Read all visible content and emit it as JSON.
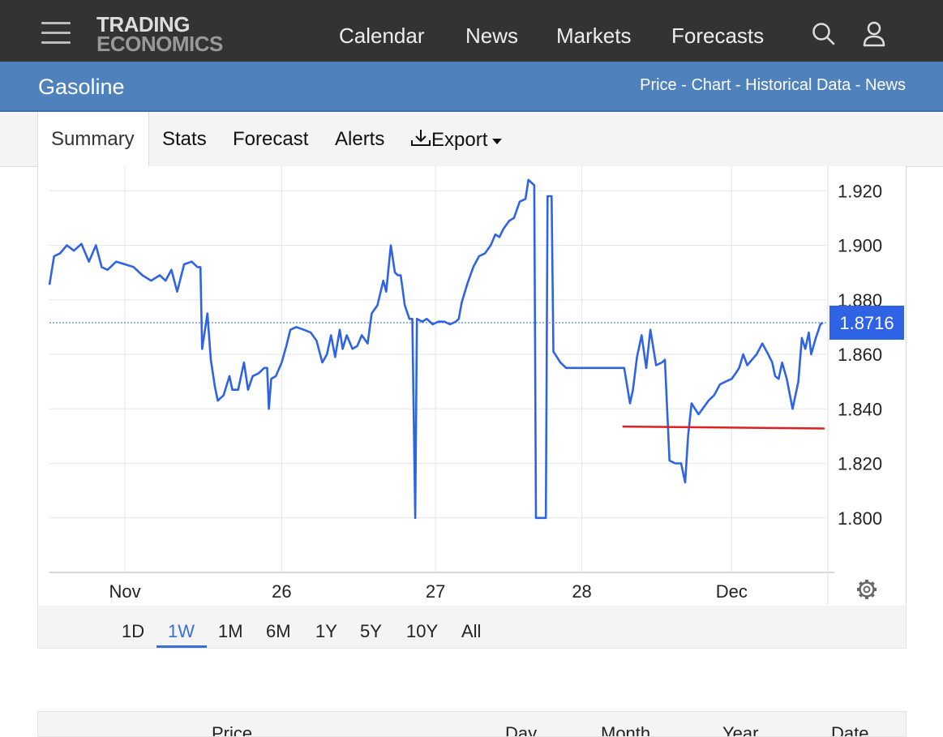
{
  "header": {
    "logo_line1": "TRADING",
    "logo_line2": "ECONOMICS",
    "nav": [
      "Calendar",
      "News",
      "Markets",
      "Forecasts"
    ],
    "icons": [
      "menu-icon",
      "search-icon",
      "user-icon"
    ]
  },
  "titlebar": {
    "title": "Gasoline",
    "links": [
      "Price",
      "Chart",
      "Historical Data",
      "News"
    ],
    "separator": " - "
  },
  "tabs": {
    "items": [
      "Summary",
      "Stats",
      "Forecast",
      "Alerts",
      "Export"
    ],
    "active": "Summary",
    "export_icon": "download-icon"
  },
  "ranges": {
    "items": [
      "1D",
      "1W",
      "1M",
      "6M",
      "1Y",
      "5Y",
      "10Y",
      "All"
    ],
    "active": "1W"
  },
  "table_header": {
    "columns": [
      "Price",
      "Day",
      "Month",
      "Year",
      "Date"
    ]
  },
  "colors": {
    "topbar": "#333333",
    "titlebar": "#4f81bd",
    "series": "#2f63e6",
    "trendline": "#e02020",
    "last_price_badge": "#2f63e6"
  },
  "chart_data": {
    "type": "line",
    "series": [
      {
        "values": [
          [
            0,
            1.8855
          ],
          [
            0.08,
            1.896
          ],
          [
            0.18,
            1.897
          ],
          [
            0.3,
            1.9
          ],
          [
            0.42,
            1.898
          ],
          [
            0.55,
            1.9005
          ],
          [
            0.68,
            1.894
          ],
          [
            0.8,
            1.9
          ],
          [
            0.9,
            1.892
          ],
          [
            1.0,
            1.891
          ],
          [
            1.15,
            1.894
          ],
          [
            1.3,
            1.893
          ],
          [
            1.45,
            1.892
          ],
          [
            1.6,
            1.889
          ],
          [
            1.75,
            1.887
          ],
          [
            1.9,
            1.889
          ],
          [
            2.0,
            1.887
          ],
          [
            2.1,
            1.891
          ],
          [
            2.2,
            1.883
          ],
          [
            2.32,
            1.893
          ],
          [
            2.45,
            1.894
          ],
          [
            2.55,
            1.892
          ],
          [
            2.6,
            1.892
          ],
          [
            2.63,
            1.862
          ],
          [
            2.72,
            1.875
          ],
          [
            2.78,
            1.858
          ],
          [
            2.85,
            1.848
          ],
          [
            2.9,
            1.843
          ],
          [
            3.0,
            1.845
          ],
          [
            3.1,
            1.852
          ],
          [
            3.15,
            1.847
          ],
          [
            3.25,
            1.847
          ],
          [
            3.35,
            1.857
          ],
          [
            3.42,
            1.847
          ],
          [
            3.5,
            1.852
          ],
          [
            3.6,
            1.853
          ],
          [
            3.7,
            1.855
          ],
          [
            3.75,
            1.855
          ],
          [
            3.78,
            1.84
          ],
          [
            3.82,
            1.851
          ],
          [
            3.9,
            1.852
          ],
          [
            4.0,
            1.857
          ],
          [
            4.08,
            1.863
          ],
          [
            4.15,
            1.869
          ],
          [
            4.25,
            1.87
          ],
          [
            4.38,
            1.869
          ],
          [
            4.5,
            1.868
          ],
          [
            4.6,
            1.865
          ],
          [
            4.7,
            1.857
          ],
          [
            4.78,
            1.86
          ],
          [
            4.85,
            1.867
          ],
          [
            4.92,
            1.859
          ],
          [
            5.0,
            1.869
          ],
          [
            5.05,
            1.862
          ],
          [
            5.12,
            1.867
          ],
          [
            5.22,
            1.862
          ],
          [
            5.3,
            1.863
          ],
          [
            5.38,
            1.867
          ],
          [
            5.48,
            1.864
          ],
          [
            5.55,
            1.875
          ],
          [
            5.65,
            1.878
          ],
          [
            5.75,
            1.887
          ],
          [
            5.8,
            1.883
          ],
          [
            5.88,
            1.9
          ],
          [
            5.95,
            1.89
          ],
          [
            6.0,
            1.889
          ],
          [
            6.05,
            1.889
          ],
          [
            6.12,
            1.878
          ],
          [
            6.2,
            1.873
          ],
          [
            6.25,
            1.873
          ],
          [
            6.3,
            1.8
          ],
          [
            6.33,
            1.873
          ],
          [
            6.42,
            1.872
          ],
          [
            6.5,
            1.873
          ],
          [
            6.6,
            1.871
          ],
          [
            6.7,
            1.872
          ],
          [
            6.8,
            1.872
          ],
          [
            6.9,
            1.871
          ],
          [
            7.0,
            1.872
          ],
          [
            7.05,
            1.873
          ],
          [
            7.1,
            1.879
          ],
          [
            7.2,
            1.886
          ],
          [
            7.3,
            1.892
          ],
          [
            7.4,
            1.896
          ],
          [
            7.5,
            1.897
          ],
          [
            7.6,
            1.9
          ],
          [
            7.68,
            1.904
          ],
          [
            7.75,
            1.903
          ],
          [
            7.82,
            1.906
          ],
          [
            7.92,
            1.909
          ],
          [
            8.0,
            1.91
          ],
          [
            8.1,
            1.916
          ],
          [
            8.2,
            1.917
          ],
          [
            8.25,
            1.924
          ],
          [
            8.35,
            1.922
          ],
          [
            8.38,
            1.8
          ],
          [
            8.55,
            1.8
          ],
          [
            8.58,
            1.918
          ],
          [
            8.65,
            1.918
          ],
          [
            8.68,
            1.861
          ],
          [
            8.8,
            1.857
          ],
          [
            8.9,
            1.855
          ],
          [
            9.1,
            1.855
          ],
          [
            9.4,
            1.855
          ],
          [
            9.7,
            1.855
          ],
          [
            9.9,
            1.855
          ],
          [
            10.0,
            1.842
          ],
          [
            10.05,
            1.847
          ],
          [
            10.12,
            1.859
          ],
          [
            10.2,
            1.867
          ],
          [
            10.28,
            1.855
          ],
          [
            10.35,
            1.869
          ],
          [
            10.45,
            1.856
          ],
          [
            10.55,
            1.857
          ],
          [
            10.6,
            1.858
          ],
          [
            10.68,
            1.821
          ],
          [
            10.78,
            1.82
          ],
          [
            10.88,
            1.82
          ],
          [
            10.95,
            1.813
          ],
          [
            11.0,
            1.83
          ],
          [
            11.06,
            1.842
          ],
          [
            11.12,
            1.84
          ],
          [
            11.18,
            1.838
          ],
          [
            11.25,
            1.84
          ],
          [
            11.35,
            1.843
          ],
          [
            11.45,
            1.845
          ],
          [
            11.55,
            1.849
          ],
          [
            11.65,
            1.85
          ],
          [
            11.75,
            1.851
          ],
          [
            11.82,
            1.853
          ],
          [
            11.88,
            1.855
          ],
          [
            11.95,
            1.86
          ],
          [
            12.02,
            1.856
          ],
          [
            12.1,
            1.858
          ],
          [
            12.18,
            1.86
          ],
          [
            12.28,
            1.864
          ],
          [
            12.38,
            1.86
          ],
          [
            12.45,
            1.857
          ],
          [
            12.5,
            1.852
          ],
          [
            12.56,
            1.851
          ],
          [
            12.62,
            1.857
          ],
          [
            12.7,
            1.851
          ],
          [
            12.8,
            1.84
          ],
          [
            12.9,
            1.85
          ],
          [
            12.96,
            1.866
          ],
          [
            13.02,
            1.862
          ],
          [
            13.08,
            1.868
          ],
          [
            13.12,
            1.86
          ],
          [
            13.2,
            1.866
          ],
          [
            13.28,
            1.871
          ],
          [
            13.32,
            1.8716
          ]
        ]
      }
    ],
    "trendline": [
      [
        9.87,
        1.8335
      ],
      [
        13.35,
        1.8328
      ]
    ],
    "last_value": "1.8716",
    "ylim": [
      1.78,
      1.929
    ],
    "xlim": [
      0,
      13.38
    ],
    "yticks": [
      "1.920",
      "1.900",
      "1.880",
      "1.860",
      "1.840",
      "1.820",
      "1.800"
    ],
    "xticks": [
      {
        "label": "Nov",
        "pos": 1.3
      },
      {
        "label": "26",
        "pos": 4.0
      },
      {
        "label": "27",
        "pos": 6.65
      },
      {
        "label": "28",
        "pos": 9.17
      },
      {
        "label": "Dec",
        "pos": 11.75
      }
    ],
    "grid": true
  }
}
